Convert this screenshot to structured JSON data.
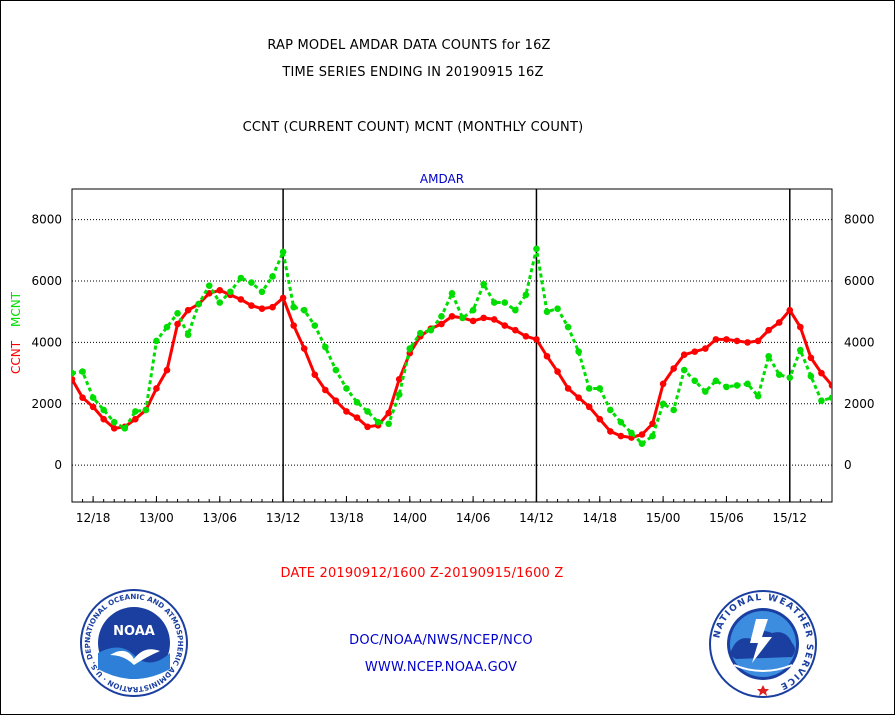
{
  "header": {
    "title_line1": "RAP MODEL AMDAR DATA COUNTS for 16Z",
    "title_line2": "TIME SERIES ENDING IN 20190915 16Z",
    "subtitle": "CCNT (CURRENT COUNT) MCNT (MONTHLY COUNT)"
  },
  "footer": {
    "date_range": "DATE 20190912/1600 Z-20190915/1600 Z",
    "org_path": "DOC/NOAA/NWS/NCEP/NCO",
    "website": "WWW.NCEP.NOAA.GOV"
  },
  "logos": {
    "noaa_text": "NOAA",
    "noaa_ring": "NATIONAL OCEANIC AND ATMOSPHERIC ADMINISTRATION · U.S. DEPARTMENT OF COMMERCE",
    "nws_ring": "NATIONAL WEATHER SERVICE"
  },
  "colors": {
    "ccnt": "#ff0000",
    "mcnt": "#00dd00",
    "title_color": "#0000cc",
    "axis": "#000000"
  },
  "chart_data": {
    "type": "line",
    "title": "AMDAR",
    "ylabel_left": "CCNT",
    "ylabel_right": "MCNT",
    "ylim": [
      -1200,
      9000
    ],
    "yticks": [
      0,
      2000,
      4000,
      6000,
      8000
    ],
    "x_unit": "hours from 2019-09-12 16Z",
    "xlim": [
      0,
      72
    ],
    "xtick_labels": [
      "12/18",
      "13/00",
      "13/06",
      "13/12",
      "13/18",
      "14/00",
      "14/06",
      "14/12",
      "14/18",
      "15/00",
      "15/06",
      "15/12"
    ],
    "xtick_hours": [
      2,
      8,
      14,
      20,
      26,
      32,
      38,
      44,
      50,
      56,
      62,
      68
    ],
    "vertical_lines_hours": [
      20,
      44,
      68
    ],
    "grid": "horizontal dotted",
    "series": [
      {
        "name": "CCNT",
        "style": "solid",
        "x": [
          0,
          1,
          2,
          3,
          4,
          5,
          6,
          7,
          8,
          9,
          10,
          11,
          12,
          13,
          14,
          15,
          16,
          17,
          18,
          19,
          20,
          21,
          22,
          23,
          24,
          25,
          26,
          27,
          28,
          29,
          30,
          31,
          32,
          33,
          34,
          35,
          36,
          37,
          38,
          39,
          40,
          41,
          42,
          43,
          44,
          45,
          46,
          47,
          48,
          49,
          50,
          51,
          52,
          53,
          54,
          55,
          56,
          57,
          58,
          59,
          60,
          61,
          62,
          63,
          64,
          65,
          66,
          67,
          68,
          69,
          70,
          71,
          72
        ],
        "values": [
          2800,
          2200,
          1900,
          1500,
          1200,
          1250,
          1500,
          1800,
          2500,
          3100,
          4600,
          5050,
          5250,
          5600,
          5700,
          5550,
          5400,
          5200,
          5100,
          5150,
          5450,
          4550,
          3800,
          2950,
          2450,
          2100,
          1750,
          1550,
          1250,
          1300,
          1700,
          2800,
          3650,
          4200,
          4450,
          4600,
          4850,
          4800,
          4700,
          4800,
          4750,
          4550,
          4400,
          4200,
          4100,
          3550,
          3050,
          2500,
          2200,
          1900,
          1500,
          1100,
          950,
          900,
          1000,
          1350,
          2650,
          3150,
          3600,
          3700,
          3800,
          4100,
          4100,
          4050,
          4000,
          4050,
          4400,
          4650,
          5050,
          4500,
          3500,
          3000,
          2600
        ]
      },
      {
        "name": "MCNT",
        "style": "dotted",
        "x": [
          0,
          1,
          2,
          3,
          4,
          5,
          6,
          7,
          8,
          9,
          10,
          11,
          12,
          13,
          14,
          15,
          16,
          17,
          18,
          19,
          20,
          21,
          22,
          23,
          24,
          25,
          26,
          27,
          28,
          29,
          30,
          31,
          32,
          33,
          34,
          35,
          36,
          37,
          38,
          39,
          40,
          41,
          42,
          43,
          44,
          45,
          46,
          47,
          48,
          49,
          50,
          51,
          52,
          53,
          54,
          55,
          56,
          57,
          58,
          59,
          60,
          61,
          62,
          63,
          64,
          65,
          66,
          67,
          68,
          69,
          70,
          71,
          72
        ],
        "values": [
          3000,
          3050,
          2200,
          1800,
          1400,
          1200,
          1750,
          1800,
          4050,
          4500,
          4950,
          4250,
          5250,
          5850,
          5300,
          5650,
          6100,
          5950,
          5650,
          6150,
          6950,
          5150,
          5050,
          4550,
          3850,
          3100,
          2500,
          2050,
          1750,
          1400,
          1350,
          2300,
          3800,
          4300,
          4400,
          4850,
          5600,
          4800,
          5050,
          5900,
          5300,
          5300,
          5050,
          5550,
          7050,
          5000,
          5100,
          4500,
          3700,
          2500,
          2500,
          1800,
          1400,
          1050,
          700,
          950,
          2000,
          1800,
          3100,
          2750,
          2400,
          2750,
          2550,
          2600,
          2650,
          2250,
          3550,
          2950,
          2850,
          3750,
          2900,
          2100,
          2200
        ]
      }
    ]
  }
}
